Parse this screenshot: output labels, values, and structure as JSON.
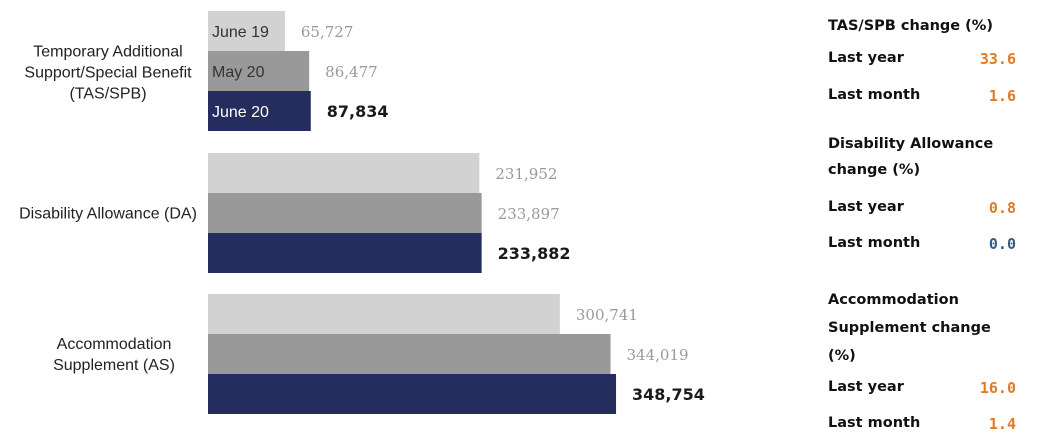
{
  "chart_data": {
    "type": "bar",
    "orientation": "horizontal",
    "categories": [
      "Temporary Additional Support/Special Benefit (TAS/SPB)",
      "Disability Allowance (DA)",
      "Accommodation Supplement (AS)"
    ],
    "series": [
      {
        "name": "June 19",
        "values": [
          65727,
          231952,
          300741
        ],
        "labels": [
          "65,727",
          "231,952",
          "300,741"
        ],
        "color": "#d2d2d2",
        "label_color": "#9a9a9a"
      },
      {
        "name": "May 20",
        "values": [
          86477,
          233897,
          344019
        ],
        "labels": [
          "86,477",
          "233,897",
          "344,019"
        ],
        "color": "#999999",
        "label_color": "#9a9a9a"
      },
      {
        "name": "June 20",
        "values": [
          87834,
          233882,
          348754
        ],
        "labels": [
          "87,834",
          "233,882",
          "348,754"
        ],
        "color": "#252c5e",
        "label_color": "#1a1a1a"
      }
    ],
    "legend": "inside-first-group",
    "grid": false
  },
  "side_panel": {
    "sections": [
      {
        "title": "TAS/SPB change (%)",
        "rows": [
          {
            "label": "Last year",
            "value": "33.6",
            "color": "#e07b26"
          },
          {
            "label": "Last month",
            "value": "1.6",
            "color": "#e07b26"
          }
        ]
      },
      {
        "title": "Disability Allowance change (%)",
        "rows": [
          {
            "label": "Last year",
            "value": "0.8",
            "color": "#e07b26"
          },
          {
            "label": "Last month",
            "value": "0.0",
            "color": "#2f5d8c"
          }
        ]
      },
      {
        "title": "Accommodation Supplement change (%)",
        "rows": [
          {
            "label": "Last year",
            "value": "16.0",
            "color": "#e07b26"
          },
          {
            "label": "Last month",
            "value": "1.4",
            "color": "#e07b26"
          }
        ]
      }
    ]
  }
}
